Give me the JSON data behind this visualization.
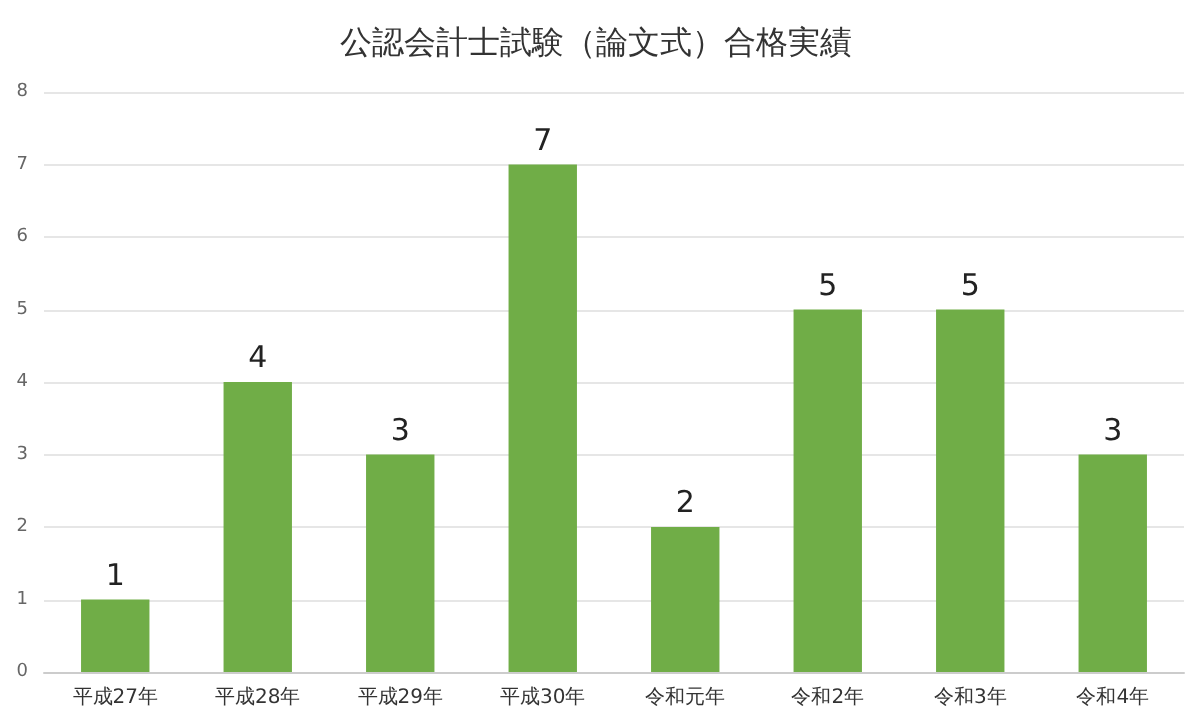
{
  "chart_data": {
    "type": "bar",
    "title": "公認会計士試験（論文式）合格実績",
    "categories": [
      "平成27年",
      "平成28年",
      "平成29年",
      "平成30年",
      "令和元年",
      "令和2年",
      "令和3年",
      "令和4年"
    ],
    "values": [
      1,
      4,
      3,
      7,
      2,
      5,
      5,
      3
    ],
    "color": "#70ad47",
    "ylim": [
      0,
      8
    ],
    "yticks": [
      0,
      1,
      2,
      3,
      4,
      5,
      6,
      7,
      8
    ],
    "grid": "y",
    "data_labels": true
  }
}
